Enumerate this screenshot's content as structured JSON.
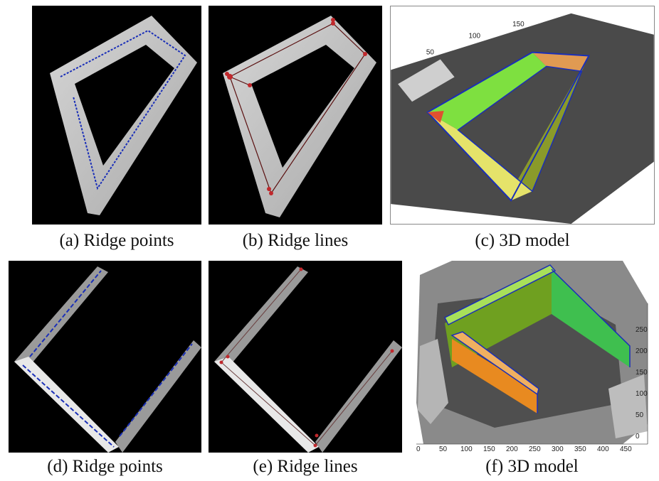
{
  "figure": {
    "panels": [
      {
        "id": "a",
        "caption": "(a) Ridge points"
      },
      {
        "id": "b",
        "caption": "(b) Ridge lines"
      },
      {
        "id": "c",
        "caption": "(c) 3D model",
        "axis_ticks": [
          "50",
          "100",
          "150"
        ]
      },
      {
        "id": "d",
        "caption": "(d) Ridge points"
      },
      {
        "id": "e",
        "caption": "(e) Ridge lines"
      },
      {
        "id": "f",
        "caption": "(f) 3D model",
        "x_ticks": [
          "0",
          "50",
          "100",
          "150",
          "200",
          "250",
          "300",
          "350",
          "400",
          "450"
        ],
        "y_ticks": [
          "250",
          "200",
          "150",
          "100",
          "50",
          "0"
        ]
      }
    ],
    "colors": {
      "background": "#000000",
      "ridge_point": "#1a2fb8",
      "ridge_line": "#8b1a1a",
      "ridge_node": "#c0282c"
    }
  }
}
